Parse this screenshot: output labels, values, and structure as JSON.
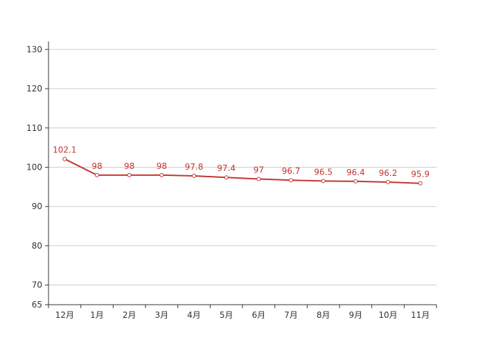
{
  "chart_data": {
    "type": "line",
    "title": "",
    "xlabel": "",
    "ylabel": "",
    "categories": [
      "12月",
      "1月",
      "2月",
      "3月",
      "4月",
      "5月",
      "6月",
      "7月",
      "8月",
      "9月",
      "10月",
      "11月"
    ],
    "series": [
      {
        "values": [
          102.1,
          98,
          98,
          98,
          97.8,
          97.4,
          97,
          96.7,
          96.5,
          96.4,
          96.2,
          95.9
        ],
        "labels": [
          "102.1",
          "98",
          "98",
          "98",
          "97.8",
          "97.4",
          "97",
          "96.7",
          "96.5",
          "96.4",
          "96.2",
          "95.9"
        ],
        "color": "#c23531"
      }
    ],
    "ylim": [
      65,
      132
    ],
    "yticks": [
      65,
      70,
      80,
      90,
      100,
      110,
      120,
      130
    ],
    "ytick_labels": [
      "65",
      "70",
      "80",
      "90",
      "100",
      "110",
      "120",
      "130"
    ],
    "grid": true,
    "legend": "none"
  }
}
